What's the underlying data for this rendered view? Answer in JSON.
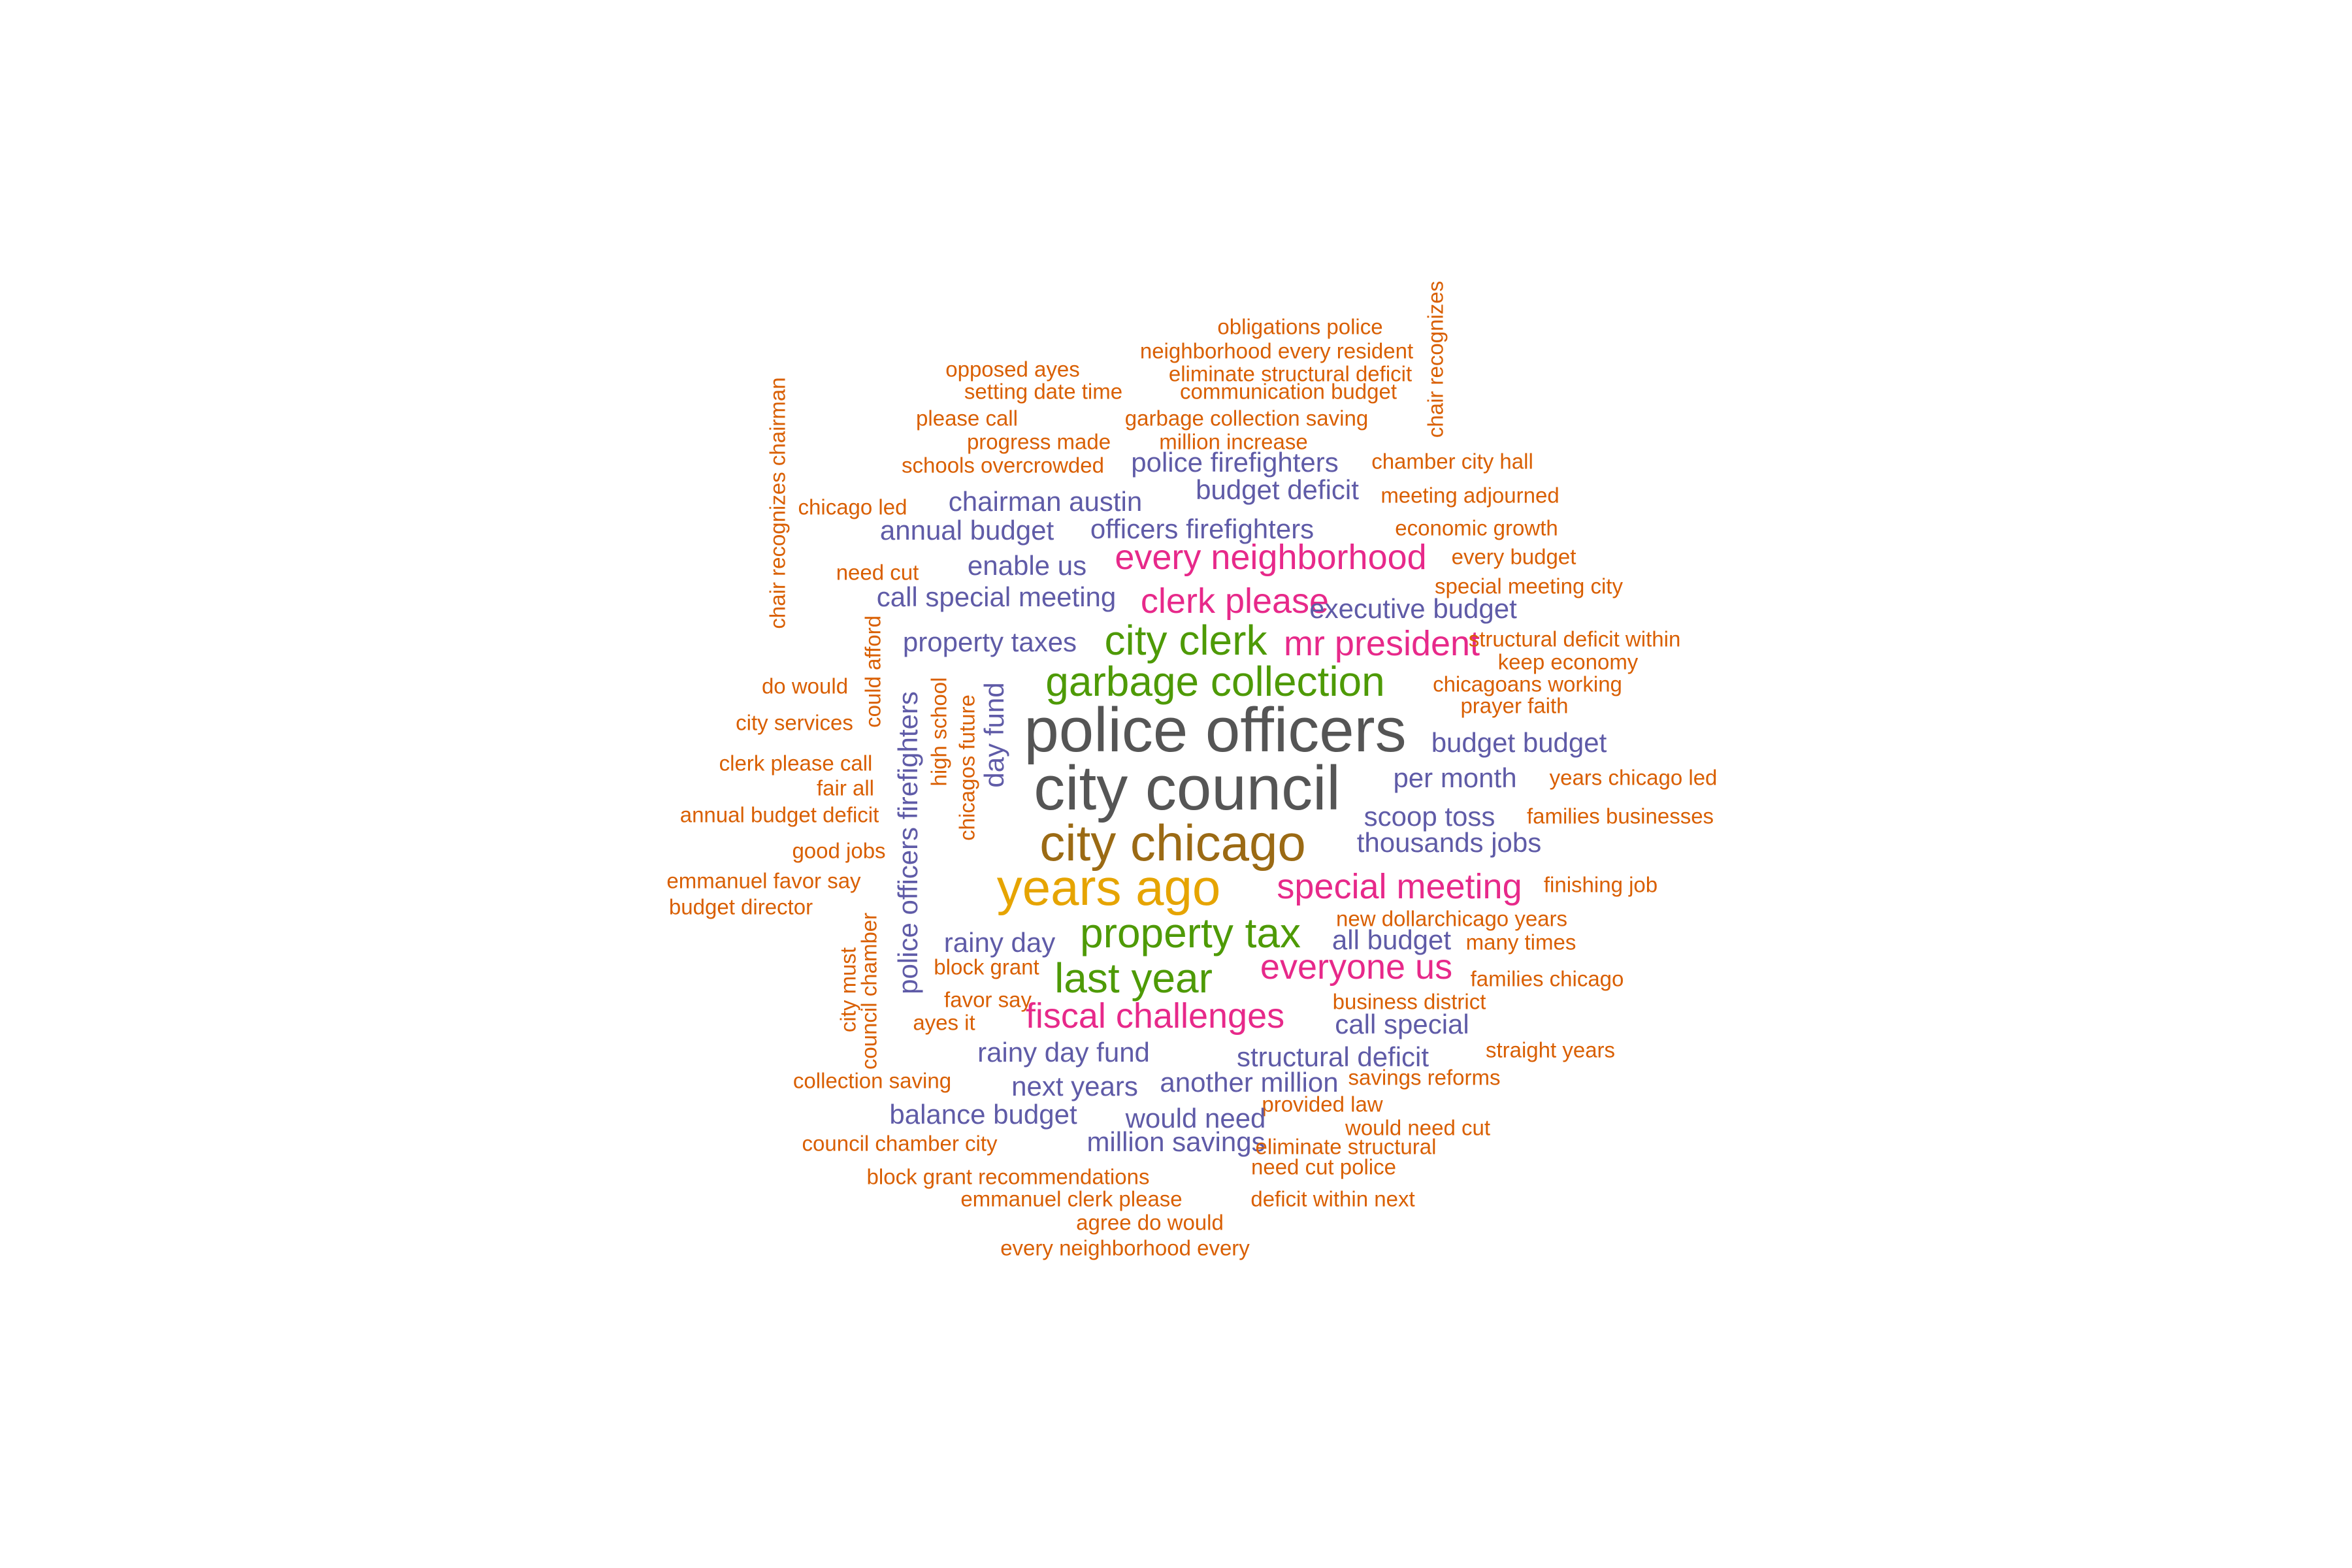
{
  "word_cloud": {
    "palette": {
      "orange": "#d95f02",
      "purple": "#5f5ba7",
      "magenta": "#e7298a",
      "green": "#4e9a06",
      "gray": "#555555",
      "brown": "#9b6a14",
      "gold": "#e6a400"
    },
    "words": [
      {
        "text": "obligations police",
        "color": "orange",
        "tier": 1
      },
      {
        "text": "neighborhood every resident",
        "color": "orange",
        "tier": 1
      },
      {
        "text": "opposed ayes",
        "color": "orange",
        "tier": 1
      },
      {
        "text": "eliminate structural deficit",
        "color": "orange",
        "tier": 1
      },
      {
        "text": "setting date time",
        "color": "orange",
        "tier": 1
      },
      {
        "text": "communication budget",
        "color": "orange",
        "tier": 1
      },
      {
        "text": "chair recognizes",
        "color": "orange",
        "tier": 1
      },
      {
        "text": "please call",
        "color": "orange",
        "tier": 1
      },
      {
        "text": "garbage collection saving",
        "color": "orange",
        "tier": 1
      },
      {
        "text": "progress made",
        "color": "orange",
        "tier": 1
      },
      {
        "text": "million increase",
        "color": "orange",
        "tier": 1
      },
      {
        "text": "chair recognizes chairman",
        "color": "orange",
        "tier": 1
      },
      {
        "text": "police firefighters",
        "color": "purple",
        "tier": 2
      },
      {
        "text": "chamber city hall",
        "color": "orange",
        "tier": 1
      },
      {
        "text": "schools overcrowded",
        "color": "orange",
        "tier": 1
      },
      {
        "text": "budget deficit",
        "color": "purple",
        "tier": 2
      },
      {
        "text": "meeting adjourned",
        "color": "orange",
        "tier": 1
      },
      {
        "text": "chicago led",
        "color": "orange",
        "tier": 1
      },
      {
        "text": "chairman austin",
        "color": "purple",
        "tier": 2
      },
      {
        "text": "annual budget",
        "color": "purple",
        "tier": 2
      },
      {
        "text": "officers firefighters",
        "color": "purple",
        "tier": 2
      },
      {
        "text": "economic growth",
        "color": "orange",
        "tier": 1
      },
      {
        "text": "every neighborhood",
        "color": "magenta",
        "tier": 3
      },
      {
        "text": "every budget",
        "color": "orange",
        "tier": 1
      },
      {
        "text": "need cut",
        "color": "orange",
        "tier": 1
      },
      {
        "text": "enable us",
        "color": "purple",
        "tier": 2
      },
      {
        "text": "special meeting city",
        "color": "orange",
        "tier": 1
      },
      {
        "text": "call special meeting",
        "color": "purple",
        "tier": 2
      },
      {
        "text": "clerk please",
        "color": "magenta",
        "tier": 3
      },
      {
        "text": "executive budget",
        "color": "purple",
        "tier": 2
      },
      {
        "text": "could afford",
        "color": "orange",
        "tier": 1
      },
      {
        "text": "property taxes",
        "color": "purple",
        "tier": 2
      },
      {
        "text": "city clerk",
        "color": "green",
        "tier": 4
      },
      {
        "text": "mr president",
        "color": "magenta",
        "tier": 3
      },
      {
        "text": "structural deficit within",
        "color": "orange",
        "tier": 1
      },
      {
        "text": "keep economy",
        "color": "orange",
        "tier": 1
      },
      {
        "text": "do would",
        "color": "orange",
        "tier": 1
      },
      {
        "text": "police officers firefighters",
        "color": "purple",
        "tier": 2
      },
      {
        "text": "high school",
        "color": "orange",
        "tier": 1
      },
      {
        "text": "chicagos future",
        "color": "orange",
        "tier": 1
      },
      {
        "text": "day fund",
        "color": "purple",
        "tier": 2
      },
      {
        "text": "garbage collection",
        "color": "green",
        "tier": 4
      },
      {
        "text": "chicagoans working",
        "color": "orange",
        "tier": 1
      },
      {
        "text": "prayer faith",
        "color": "orange",
        "tier": 1
      },
      {
        "text": "city services",
        "color": "orange",
        "tier": 1
      },
      {
        "text": "police officers",
        "color": "gray",
        "tier": 6
      },
      {
        "text": "budget budget",
        "color": "purple",
        "tier": 2
      },
      {
        "text": "clerk please call",
        "color": "orange",
        "tier": 1
      },
      {
        "text": "fair all",
        "color": "orange",
        "tier": 1
      },
      {
        "text": "city council",
        "color": "gray",
        "tier": 6
      },
      {
        "text": "per month",
        "color": "purple",
        "tier": 2
      },
      {
        "text": "years chicago led",
        "color": "orange",
        "tier": 1
      },
      {
        "text": "annual budget deficit",
        "color": "orange",
        "tier": 1
      },
      {
        "text": "scoop toss",
        "color": "purple",
        "tier": 2
      },
      {
        "text": "families businesses",
        "color": "orange",
        "tier": 1
      },
      {
        "text": "city chicago",
        "color": "brown",
        "tier": 5
      },
      {
        "text": "good jobs",
        "color": "orange",
        "tier": 1
      },
      {
        "text": "thousands jobs",
        "color": "purple",
        "tier": 2
      },
      {
        "text": "emmanuel favor say",
        "color": "orange",
        "tier": 1
      },
      {
        "text": "years ago",
        "color": "gold",
        "tier": 5
      },
      {
        "text": "special meeting",
        "color": "magenta",
        "tier": 3
      },
      {
        "text": "finishing job",
        "color": "orange",
        "tier": 1
      },
      {
        "text": "budget director",
        "color": "orange",
        "tier": 1
      },
      {
        "text": "new dollarchicago years",
        "color": "orange",
        "tier": 1
      },
      {
        "text": "property tax",
        "color": "green",
        "tier": 4
      },
      {
        "text": "city must",
        "color": "orange",
        "tier": 1
      },
      {
        "text": "council chamber",
        "color": "orange",
        "tier": 1
      },
      {
        "text": "rainy day",
        "color": "purple",
        "tier": 2
      },
      {
        "text": "all budget",
        "color": "purple",
        "tier": 2
      },
      {
        "text": "many times",
        "color": "orange",
        "tier": 1
      },
      {
        "text": "block grant",
        "color": "orange",
        "tier": 1
      },
      {
        "text": "everyone us",
        "color": "magenta",
        "tier": 3
      },
      {
        "text": "last year",
        "color": "green",
        "tier": 4
      },
      {
        "text": "families chicago",
        "color": "orange",
        "tier": 1
      },
      {
        "text": "favor say",
        "color": "orange",
        "tier": 1
      },
      {
        "text": "business district",
        "color": "orange",
        "tier": 1
      },
      {
        "text": "fiscal challenges",
        "color": "magenta",
        "tier": 3
      },
      {
        "text": "ayes it",
        "color": "orange",
        "tier": 1
      },
      {
        "text": "call special",
        "color": "purple",
        "tier": 2
      },
      {
        "text": "rainy day fund",
        "color": "purple",
        "tier": 2
      },
      {
        "text": "straight years",
        "color": "orange",
        "tier": 1
      },
      {
        "text": "structural deficit",
        "color": "purple",
        "tier": 2
      },
      {
        "text": "collection saving",
        "color": "orange",
        "tier": 1
      },
      {
        "text": "savings reforms",
        "color": "orange",
        "tier": 1
      },
      {
        "text": "next years",
        "color": "purple",
        "tier": 2
      },
      {
        "text": "another million",
        "color": "purple",
        "tier": 2
      },
      {
        "text": "provided law",
        "color": "orange",
        "tier": 1
      },
      {
        "text": "balance budget",
        "color": "purple",
        "tier": 2
      },
      {
        "text": "would need",
        "color": "purple",
        "tier": 2
      },
      {
        "text": "would need cut",
        "color": "orange",
        "tier": 1
      },
      {
        "text": "council chamber city",
        "color": "orange",
        "tier": 1
      },
      {
        "text": "million savings",
        "color": "purple",
        "tier": 2
      },
      {
        "text": "eliminate structural",
        "color": "orange",
        "tier": 1
      },
      {
        "text": "need cut police",
        "color": "orange",
        "tier": 1
      },
      {
        "text": "block grant recommendations",
        "color": "orange",
        "tier": 1
      },
      {
        "text": "emmanuel clerk please",
        "color": "orange",
        "tier": 1
      },
      {
        "text": "deficit within next",
        "color": "orange",
        "tier": 1
      },
      {
        "text": "agree do would",
        "color": "orange",
        "tier": 1
      },
      {
        "text": "every neighborhood every",
        "color": "orange",
        "tier": 1
      }
    ]
  }
}
